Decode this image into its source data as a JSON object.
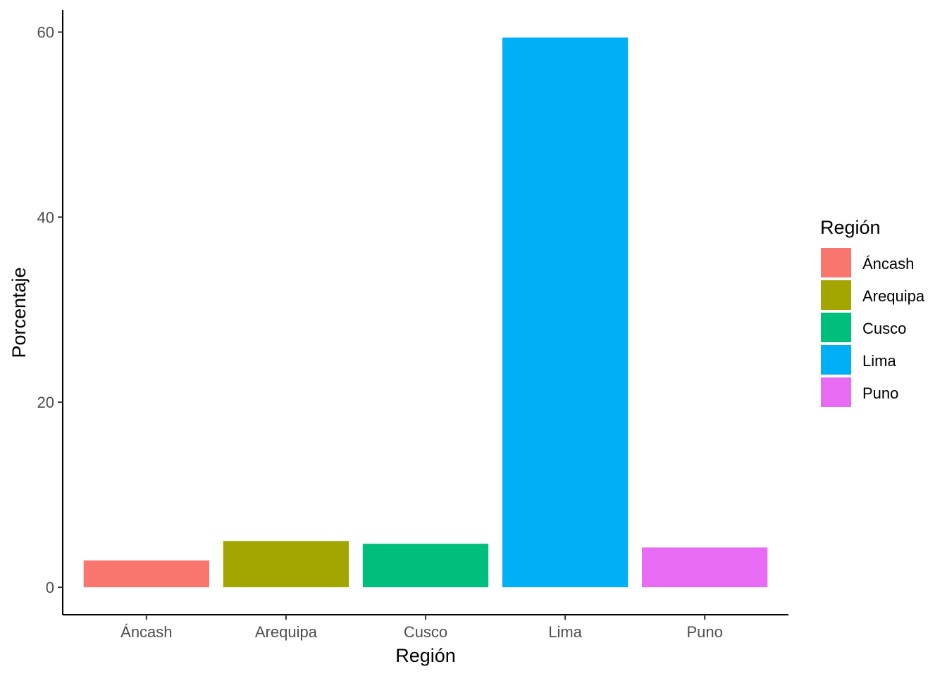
{
  "chart_data": {
    "type": "bar",
    "categories": [
      "Áncash",
      "Arequipa",
      "Cusco",
      "Lima",
      "Puno"
    ],
    "values": [
      2.9,
      5.0,
      4.7,
      59.4,
      4.3
    ],
    "colors": [
      "#F8766D",
      "#A3A500",
      "#00BF7D",
      "#00B0F6",
      "#E76BF3"
    ],
    "xlabel": "Región",
    "ylabel": "Porcentaje",
    "ylim": [
      -2.97,
      62.4
    ],
    "yticks": [
      0,
      20,
      40,
      60
    ],
    "grid": false,
    "legend": {
      "title": "Región",
      "position": "right",
      "items": [
        "Áncash",
        "Arequipa",
        "Cusco",
        "Lima",
        "Puno"
      ]
    }
  }
}
